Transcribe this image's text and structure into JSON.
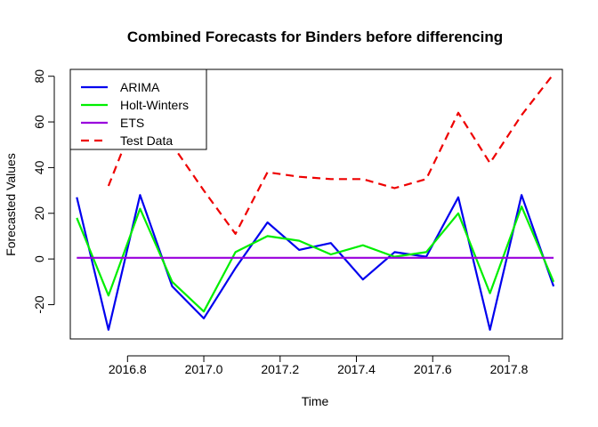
{
  "chart_data": {
    "type": "line",
    "title": "Combined Forecasts for Binders before differencing",
    "xlabel": "Time",
    "ylabel": "Forecasted Values",
    "xlim": [
      2016.65,
      2017.94
    ],
    "ylim": [
      -35,
      83
    ],
    "xticks": [
      2016.8,
      2017.0,
      2017.2,
      2017.4,
      2017.6,
      2017.8
    ],
    "xtick_labels": [
      "2016.8",
      "2017.0",
      "2017.2",
      "2017.4",
      "2017.6",
      "2017.8"
    ],
    "yticks": [
      -20,
      0,
      20,
      40,
      60,
      80
    ],
    "ytick_labels": [
      "-20",
      "0",
      "20",
      "40",
      "60",
      "80"
    ],
    "grid": false,
    "legend_position": "top-left",
    "x": [
      2016.667,
      2016.75,
      2016.833,
      2016.917,
      2017.0,
      2017.083,
      2017.167,
      2017.25,
      2017.333,
      2017.417,
      2017.5,
      2017.583,
      2017.667,
      2017.75,
      2017.833,
      2017.917
    ],
    "series": [
      {
        "name": "ARIMA",
        "color": "#0000ee",
        "dash": "solid",
        "values": [
          27,
          -31,
          28,
          -12,
          -26,
          -4,
          16,
          4,
          7,
          -9,
          3,
          1,
          27,
          -31,
          28,
          -12
        ]
      },
      {
        "name": "Holt-Winters",
        "color": "#00ee00",
        "dash": "solid",
        "values": [
          18,
          -16,
          22,
          -10,
          -23,
          3,
          10,
          8,
          2,
          6,
          1,
          3,
          20,
          -15,
          23,
          -10
        ]
      },
      {
        "name": "ETS",
        "color": "#9900dd",
        "dash": "solid",
        "values": [
          0.5,
          0.5,
          0.5,
          0.5,
          0.5,
          0.5,
          0.5,
          0.5,
          0.5,
          0.5,
          0.5,
          0.5,
          0.5,
          0.5,
          0.5,
          0.5
        ]
      },
      {
        "name": "Test Data",
        "color": "#ee0000",
        "dash": "dashed",
        "values": [
          null,
          32,
          67,
          50,
          30,
          11,
          38,
          36,
          35,
          35,
          31,
          35,
          64,
          42,
          63,
          81
        ]
      }
    ]
  }
}
